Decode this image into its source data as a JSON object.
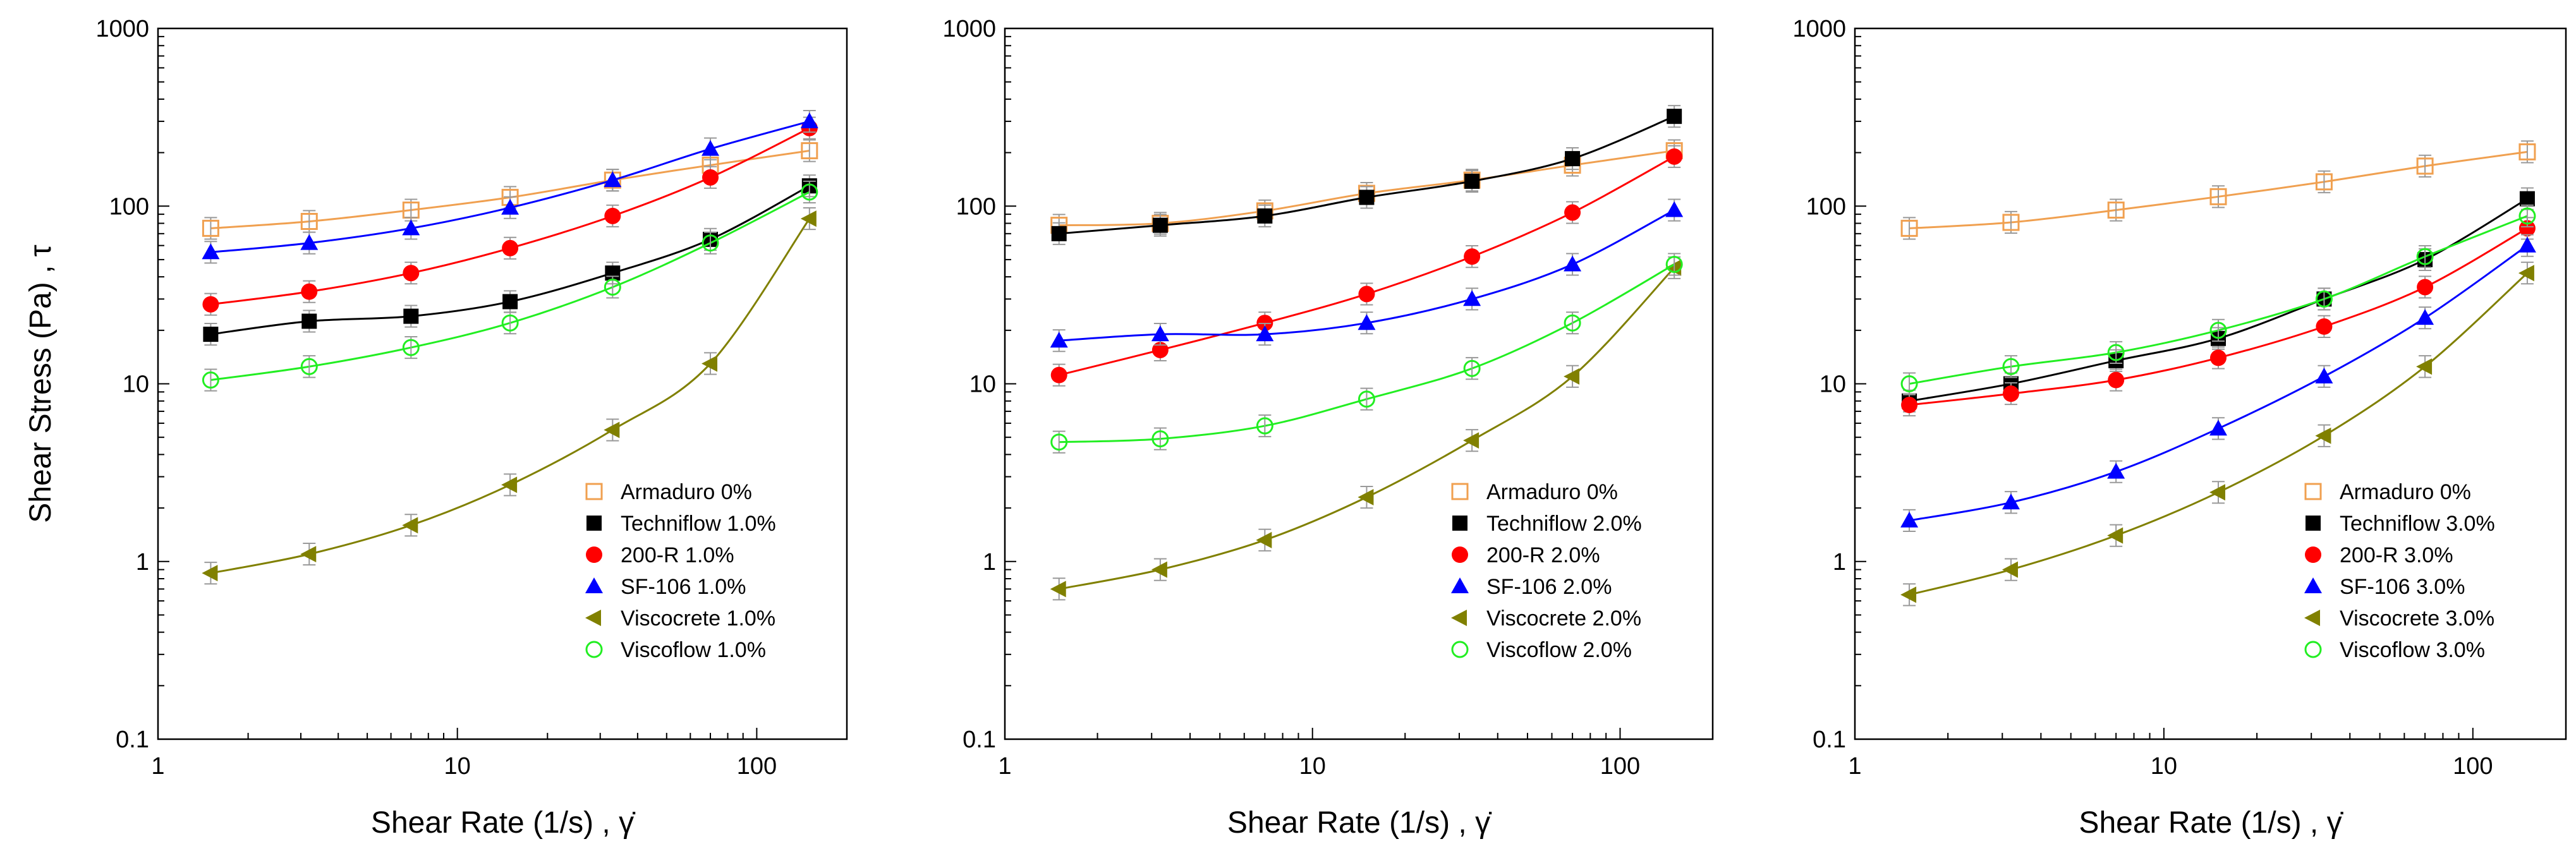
{
  "chart_data": [
    {
      "type": "scatter",
      "title": "",
      "xlabel": "Shear Rate (1/s)  , γ̇",
      "ylabel": "Shear Stress (Pa) , τ",
      "xscale": "log",
      "yscale": "log",
      "xlim": [
        1,
        200
      ],
      "ylim": [
        0.1,
        1000
      ],
      "x_ticks": [
        "1",
        "10",
        "100"
      ],
      "y_ticks": [
        "0.1",
        "1",
        "10",
        "100",
        "1000"
      ],
      "grid": false,
      "legend_position": "lower-right",
      "x": [
        1.5,
        3.2,
        7,
        15,
        33,
        70,
        150
      ],
      "series": [
        {
          "name": "Armaduro 0%",
          "marker": "open-square",
          "color": "#f0a050",
          "values": [
            75,
            82,
            95,
            112,
            140,
            170,
            205
          ]
        },
        {
          "name": "Techniflow 1.0%",
          "marker": "filled-square",
          "color": "#000000",
          "values": [
            19,
            22.5,
            24,
            29,
            42,
            65,
            130
          ]
        },
        {
          "name": "200-R 1.0%",
          "marker": "filled-circle",
          "color": "#ff0000",
          "values": [
            28,
            33,
            42,
            58,
            88,
            145,
            275
          ]
        },
        {
          "name": "SF-106 1.0%",
          "marker": "filled-triangle",
          "color": "#0000ff",
          "values": [
            55,
            62,
            75,
            98,
            140,
            210,
            300
          ]
        },
        {
          "name": "Viscocrete 1.0%",
          "marker": "left-triangle",
          "color": "#808000",
          "values": [
            0.86,
            1.1,
            1.6,
            2.7,
            5.5,
            13,
            85
          ]
        },
        {
          "name": "Viscoflow 1.0%",
          "marker": "open-circle",
          "color": "#22ee22",
          "values": [
            10.5,
            12.5,
            16,
            22,
            35,
            62,
            120
          ]
        }
      ]
    },
    {
      "type": "scatter",
      "title": "",
      "xlabel": "Shear Rate (1/s)  , γ̇",
      "ylabel": "",
      "xscale": "log",
      "yscale": "log",
      "xlim": [
        1,
        200
      ],
      "ylim": [
        0.1,
        1000
      ],
      "x_ticks": [
        "1",
        "10",
        "100"
      ],
      "y_ticks": [
        "0.1",
        "1",
        "10",
        "100",
        "1000"
      ],
      "grid": false,
      "legend_position": "lower-right",
      "x": [
        1.5,
        3.2,
        7,
        15,
        33,
        70,
        150
      ],
      "series": [
        {
          "name": "Armaduro 0%",
          "marker": "open-square",
          "color": "#f0a050",
          "values": [
            78,
            80,
            94,
            118,
            140,
            170,
            205
          ]
        },
        {
          "name": "Techniflow 2.0%",
          "marker": "filled-square",
          "color": "#000000",
          "values": [
            70,
            78,
            88,
            112,
            138,
            185,
            320
          ]
        },
        {
          "name": "200-R 2.0%",
          "marker": "filled-circle",
          "color": "#ff0000",
          "values": [
            11.2,
            15.5,
            22,
            32,
            52,
            92,
            190
          ]
        },
        {
          "name": "SF-106 2.0%",
          "marker": "filled-triangle",
          "color": "#0000ff",
          "values": [
            17.5,
            19,
            19,
            22,
            30,
            47,
            95
          ]
        },
        {
          "name": "Viscocrete 2.0%",
          "marker": "left-triangle",
          "color": "#808000",
          "values": [
            0.7,
            0.9,
            1.32,
            2.3,
            4.8,
            11,
            45
          ]
        },
        {
          "name": "Viscoflow 2.0%",
          "marker": "open-circle",
          "color": "#22ee22",
          "values": [
            4.7,
            4.9,
            5.8,
            8.2,
            12.2,
            22,
            47
          ]
        }
      ]
    },
    {
      "type": "scatter",
      "title": "",
      "xlabel": "Shear Rate (1/s)  , γ̇",
      "ylabel": "",
      "xscale": "log",
      "yscale": "log",
      "xlim": [
        1,
        200
      ],
      "ylim": [
        0.1,
        1000
      ],
      "x_ticks": [
        "1",
        "10",
        "100"
      ],
      "y_ticks": [
        "0.1",
        "1",
        "10",
        "100",
        "1000"
      ],
      "grid": false,
      "legend_position": "lower-right",
      "x": [
        1.5,
        3.2,
        7,
        15,
        33,
        70,
        150
      ],
      "series": [
        {
          "name": "Armaduro 0%",
          "marker": "open-square",
          "color": "#f0a050",
          "values": [
            75,
            81,
            95,
            113,
            137,
            168,
            202
          ]
        },
        {
          "name": "Techniflow 3.0%",
          "marker": "filled-square",
          "color": "#000000",
          "values": [
            8,
            10,
            13.5,
            18,
            30,
            50,
            110
          ]
        },
        {
          "name": "200-R 3.0%",
          "marker": "filled-circle",
          "color": "#ff0000",
          "values": [
            7.6,
            8.8,
            10.5,
            14,
            21,
            35,
            75
          ]
        },
        {
          "name": "SF-106 3.0%",
          "marker": "filled-triangle",
          "color": "#0000ff",
          "values": [
            1.7,
            2.15,
            3.2,
            5.6,
            11,
            23.5,
            60
          ]
        },
        {
          "name": "Viscocrete 3.0%",
          "marker": "left-triangle",
          "color": "#808000",
          "values": [
            0.65,
            0.9,
            1.4,
            2.45,
            5.1,
            12.5,
            42
          ]
        },
        {
          "name": "Viscoflow 3.0%",
          "marker": "open-circle",
          "color": "#22ee22",
          "values": [
            10,
            12.5,
            15,
            20,
            30,
            52,
            88
          ]
        }
      ]
    }
  ]
}
